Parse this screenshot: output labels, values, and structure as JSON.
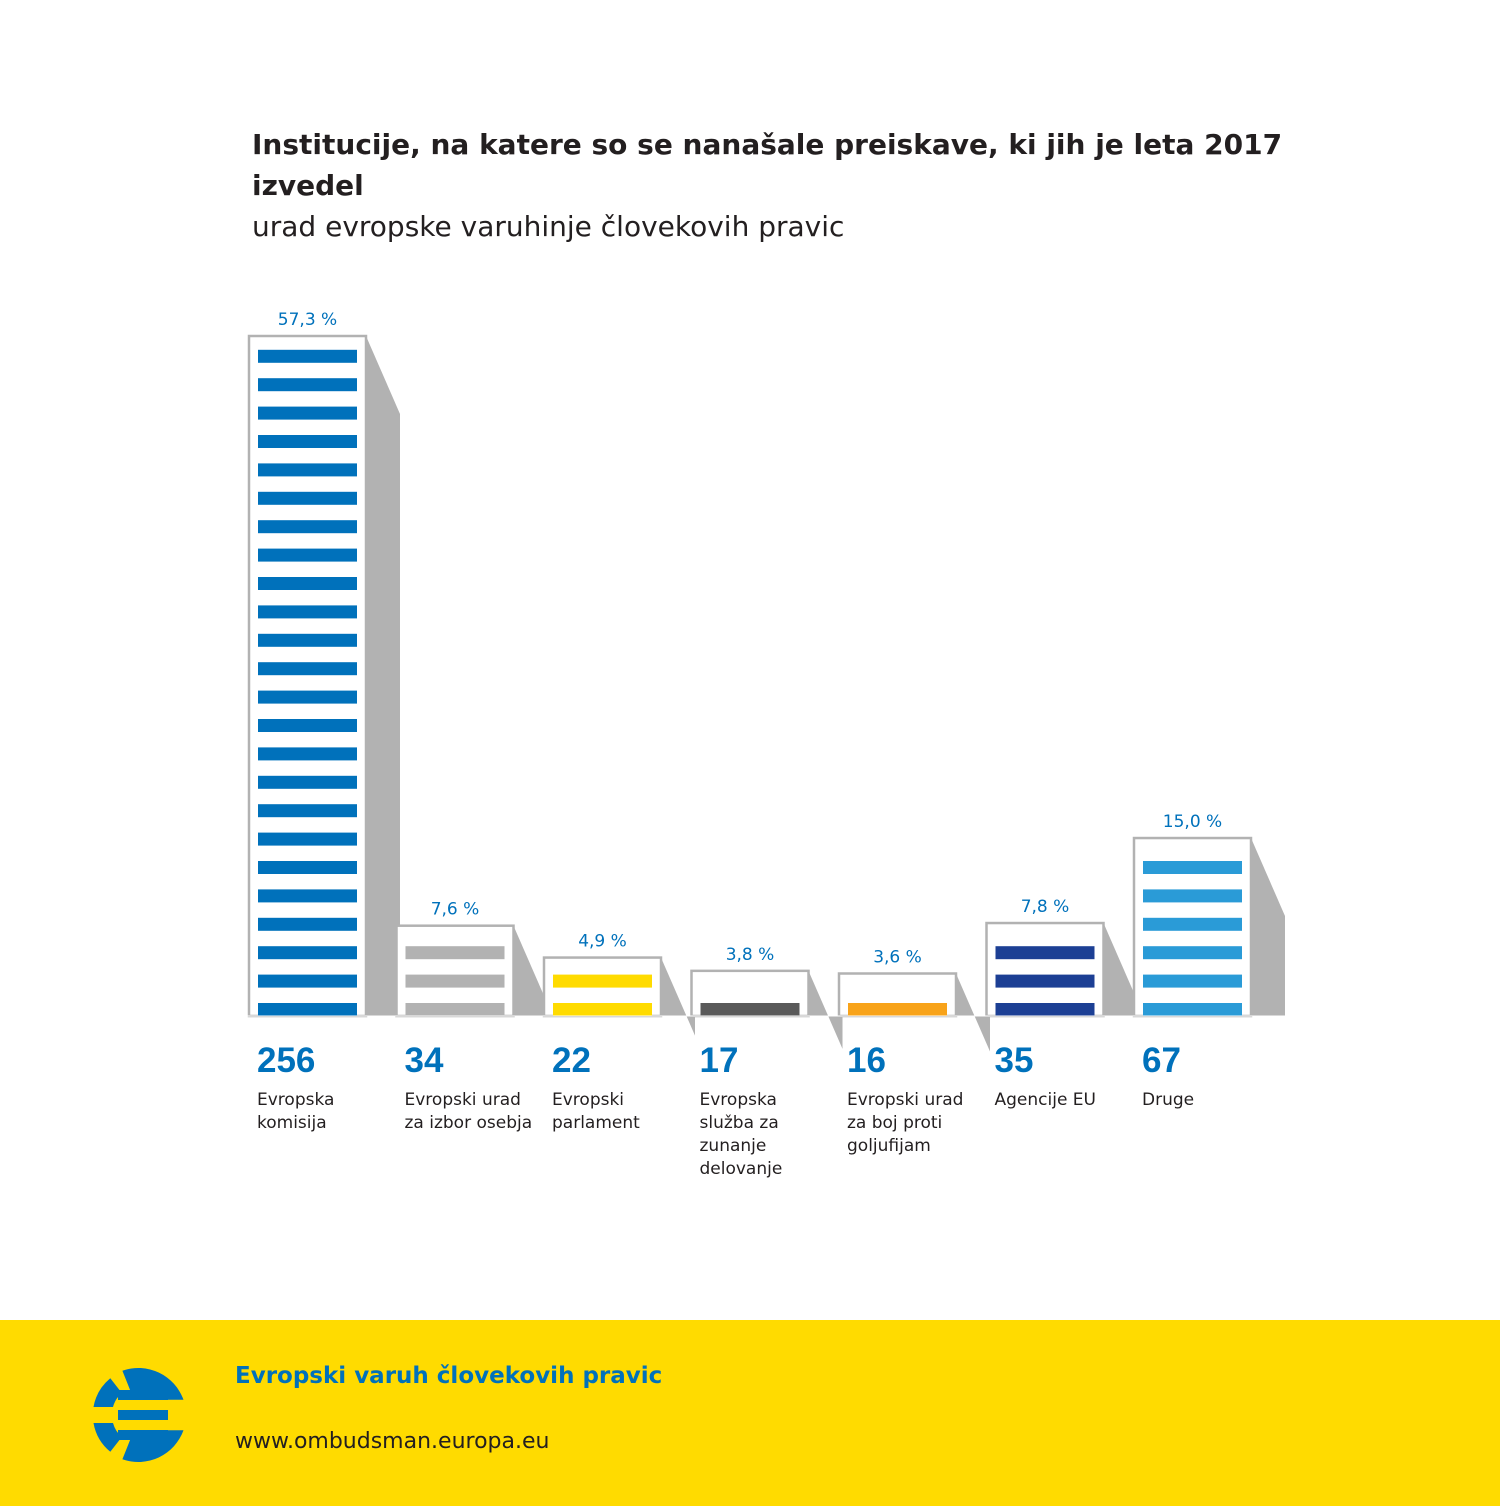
{
  "chart_data": {
    "type": "bar",
    "title": "Institucije, na katere so se nanašale preiskave, ki jih je leta 2017 izvedel",
    "subtitle": "urad evropske varuhinje človekovih pravic",
    "categories": [
      "Evropska komisija",
      "Evropski urad za izbor osebja",
      "Evropski parlament",
      "Evropska služba za zunanje delovanje",
      "Evropski urad za boj proti goljufijam",
      "Agencije EU",
      "Druge"
    ],
    "label_lines": [
      [
        "Evropska",
        "komisija"
      ],
      [
        "Evropski urad",
        "za izbor osebja"
      ],
      [
        "Evropski",
        "parlament"
      ],
      [
        "Evropska",
        "služba za",
        "zunanje",
        "delovanje"
      ],
      [
        "Evropski urad",
        "za boj proti",
        "goljufijam"
      ],
      [
        "Agencije EU"
      ],
      [
        "Druge"
      ]
    ],
    "values": [
      256,
      34,
      22,
      17,
      16,
      35,
      67
    ],
    "percent_labels": [
      "57,3 %",
      "7,6 %",
      "4,9 %",
      "3,8 %",
      "3,6 %",
      "7,8 %",
      "15,0 %"
    ],
    "percent_values": [
      57.3,
      7.6,
      4.9,
      3.8,
      3.6,
      7.8,
      15.0
    ],
    "colors": [
      "#0071bb",
      "#b2b2b2",
      "#ffdb00",
      "#5a5a5a",
      "#f8a31a",
      "#1c3f94",
      "#2a9bd7"
    ],
    "ylim": [
      0,
      256
    ],
    "grid": false,
    "legend": "none"
  },
  "colors": {
    "value_text": "#0071bb",
    "bar_outline": "#b2b2b2",
    "bar_shadow": "#b2b2b2",
    "footer_bg": "#ffdb00"
  },
  "footer": {
    "org_name": "Evropski varuh človekovih pravic",
    "url": "www.ombudsman.europa.eu",
    "logo_icon": "ombudsman-logo-icon"
  }
}
